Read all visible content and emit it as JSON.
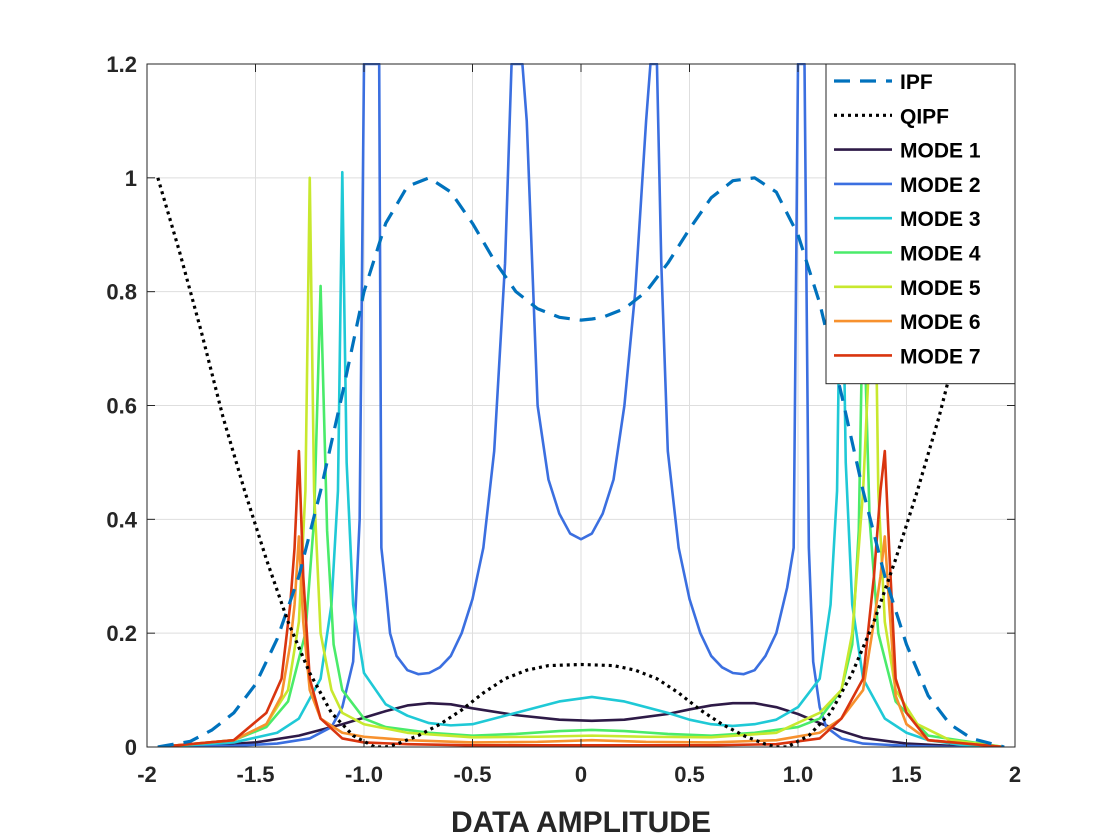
{
  "chart_data": {
    "type": "line",
    "title": "",
    "xlabel": "DATA  AMPLITUDE",
    "ylabel": "",
    "xlim": [
      -2,
      2
    ],
    "ylim": [
      0,
      1.2
    ],
    "grid": true,
    "legend_position": "top-right",
    "xticks": [
      {
        "value": -2,
        "label": "-2"
      },
      {
        "value": -1.5,
        "label": "-1.5"
      },
      {
        "value": -1,
        "label": "-1.0"
      },
      {
        "value": -0.5,
        "label": "-0.5"
      },
      {
        "value": 0,
        "label": "0"
      },
      {
        "value": 0.5,
        "label": "0.5"
      },
      {
        "value": 1,
        "label": "1.0"
      },
      {
        "value": 1.5,
        "label": "1.5"
      },
      {
        "value": 2,
        "label": "2"
      }
    ],
    "yticks": [
      {
        "value": 0,
        "label": "0"
      },
      {
        "value": 0.2,
        "label": "0.2"
      },
      {
        "value": 0.4,
        "label": "0.4"
      },
      {
        "value": 0.6,
        "label": "0.6"
      },
      {
        "value": 0.8,
        "label": "0.8"
      },
      {
        "value": 1,
        "label": "1"
      },
      {
        "value": 1.2,
        "label": "1.2"
      }
    ],
    "series": [
      {
        "name": "IPF",
        "color": "#0072BD",
        "style": "dashed",
        "x": [
          -1.95,
          -1.8,
          -1.7,
          -1.6,
          -1.5,
          -1.4,
          -1.3,
          -1.2,
          -1.1,
          -1.0,
          -0.9,
          -0.8,
          -0.7,
          -0.6,
          -0.5,
          -0.4,
          -0.3,
          -0.2,
          -0.1,
          0.0,
          0.05,
          0.1,
          0.2,
          0.3,
          0.4,
          0.5,
          0.6,
          0.7,
          0.8,
          0.9,
          1.0,
          1.1,
          1.2,
          1.3,
          1.4,
          1.5,
          1.6,
          1.7,
          1.8,
          1.95
        ],
        "y": [
          0.0,
          0.01,
          0.03,
          0.06,
          0.11,
          0.19,
          0.3,
          0.45,
          0.62,
          0.8,
          0.92,
          0.985,
          1.0,
          0.975,
          0.92,
          0.855,
          0.8,
          0.77,
          0.755,
          0.75,
          0.752,
          0.755,
          0.77,
          0.8,
          0.85,
          0.91,
          0.965,
          0.995,
          1.0,
          0.975,
          0.9,
          0.78,
          0.62,
          0.45,
          0.3,
          0.18,
          0.09,
          0.04,
          0.015,
          0.0
        ]
      },
      {
        "name": "QIPF",
        "color": "#000000",
        "style": "dotted",
        "x": [
          -1.95,
          -1.85,
          -1.75,
          -1.65,
          -1.55,
          -1.45,
          -1.35,
          -1.25,
          -1.15,
          -1.05,
          -0.95,
          -0.9,
          -0.85,
          -0.75,
          -0.65,
          -0.55,
          -0.45,
          -0.35,
          -0.25,
          -0.15,
          0.0,
          0.15,
          0.25,
          0.35,
          0.45,
          0.55,
          0.65,
          0.75,
          0.85,
          0.9,
          0.95,
          1.05,
          1.15,
          1.25,
          1.35,
          1.45,
          1.55,
          1.65,
          1.75,
          1.85,
          1.95
        ],
        "y": [
          1.0,
          0.87,
          0.73,
          0.58,
          0.45,
          0.33,
          0.22,
          0.13,
          0.06,
          0.02,
          0.0,
          0.0,
          0.005,
          0.02,
          0.04,
          0.065,
          0.095,
          0.12,
          0.135,
          0.143,
          0.145,
          0.143,
          0.135,
          0.12,
          0.095,
          0.065,
          0.04,
          0.02,
          0.005,
          0.0,
          0.0,
          0.02,
          0.06,
          0.13,
          0.22,
          0.33,
          0.45,
          0.58,
          0.73,
          0.87,
          1.0
        ]
      },
      {
        "name": "MODE 1",
        "color": "#2E1A47",
        "style": "solid",
        "x": [
          -1.95,
          -1.7,
          -1.5,
          -1.3,
          -1.1,
          -0.9,
          -0.8,
          -0.7,
          -0.6,
          -0.5,
          -0.3,
          -0.1,
          0.05,
          0.2,
          0.4,
          0.5,
          0.6,
          0.7,
          0.8,
          0.9,
          1.0,
          1.1,
          1.2,
          1.3,
          1.5,
          1.7,
          1.95
        ],
        "y": [
          0.0,
          0.003,
          0.008,
          0.02,
          0.04,
          0.063,
          0.073,
          0.077,
          0.075,
          0.068,
          0.056,
          0.048,
          0.046,
          0.048,
          0.058,
          0.066,
          0.073,
          0.077,
          0.077,
          0.07,
          0.058,
          0.042,
          0.028,
          0.016,
          0.006,
          0.002,
          0.0
        ]
      },
      {
        "name": "MODE 2",
        "color": "#3B6FE0",
        "style": "solid",
        "x": [
          -1.95,
          -1.6,
          -1.4,
          -1.25,
          -1.15,
          -1.1,
          -1.05,
          -1.02,
          -1.0,
          -0.98,
          -0.95,
          -0.93,
          -0.92,
          -0.9,
          -0.88,
          -0.85,
          -0.8,
          -0.75,
          -0.7,
          -0.65,
          -0.6,
          -0.55,
          -0.5,
          -0.45,
          -0.4,
          -0.35,
          -0.32,
          -0.3,
          -0.28,
          -0.27,
          -0.25,
          -0.22,
          -0.2,
          -0.15,
          -0.1,
          -0.05,
          0.0,
          0.05,
          0.1,
          0.15,
          0.2,
          0.25,
          0.3,
          0.32,
          0.33,
          0.35,
          0.37,
          0.4,
          0.45,
          0.5,
          0.55,
          0.6,
          0.65,
          0.7,
          0.75,
          0.8,
          0.85,
          0.9,
          0.95,
          0.98,
          1.0,
          1.02,
          1.03,
          1.05,
          1.07,
          1.1,
          1.13,
          1.2,
          1.3,
          1.5,
          1.7,
          1.95
        ],
        "y": [
          0.0,
          0.002,
          0.006,
          0.015,
          0.035,
          0.07,
          0.15,
          0.4,
          1.2,
          1.2,
          1.2,
          1.2,
          0.35,
          0.28,
          0.2,
          0.16,
          0.135,
          0.128,
          0.13,
          0.14,
          0.16,
          0.2,
          0.26,
          0.35,
          0.52,
          0.85,
          1.2,
          1.2,
          1.2,
          1.2,
          1.1,
          0.8,
          0.6,
          0.47,
          0.41,
          0.375,
          0.365,
          0.375,
          0.41,
          0.47,
          0.6,
          0.8,
          1.1,
          1.2,
          1.2,
          1.2,
          0.85,
          0.52,
          0.35,
          0.26,
          0.2,
          0.16,
          0.14,
          0.13,
          0.128,
          0.135,
          0.16,
          0.2,
          0.28,
          0.35,
          1.2,
          1.2,
          1.2,
          0.35,
          0.15,
          0.07,
          0.035,
          0.015,
          0.006,
          0.002,
          0.0,
          0.0
        ]
      },
      {
        "name": "MODE 3",
        "color": "#1FC9D6",
        "style": "solid",
        "x": [
          -1.95,
          -1.6,
          -1.4,
          -1.3,
          -1.2,
          -1.15,
          -1.12,
          -1.1,
          -1.08,
          -1.05,
          -1.0,
          -0.9,
          -0.8,
          -0.7,
          -0.6,
          -0.5,
          -0.3,
          -0.1,
          0.05,
          0.2,
          0.4,
          0.5,
          0.6,
          0.7,
          0.8,
          0.9,
          1.0,
          1.1,
          1.15,
          1.18,
          1.2,
          1.22,
          1.25,
          1.3,
          1.4,
          1.5,
          1.6,
          1.75,
          1.95
        ],
        "y": [
          0.0,
          0.008,
          0.025,
          0.05,
          0.12,
          0.25,
          0.45,
          1.01,
          0.5,
          0.25,
          0.13,
          0.075,
          0.055,
          0.042,
          0.038,
          0.04,
          0.06,
          0.08,
          0.088,
          0.08,
          0.06,
          0.048,
          0.04,
          0.037,
          0.04,
          0.048,
          0.07,
          0.12,
          0.25,
          0.45,
          1.01,
          0.5,
          0.25,
          0.12,
          0.05,
          0.025,
          0.012,
          0.004,
          0.0
        ]
      },
      {
        "name": "MODE 4",
        "color": "#4AEB6A",
        "style": "solid",
        "x": [
          -1.95,
          -1.6,
          -1.45,
          -1.35,
          -1.27,
          -1.23,
          -1.2,
          -1.17,
          -1.14,
          -1.1,
          -1.0,
          -0.9,
          -0.7,
          -0.5,
          -0.3,
          -0.1,
          0.05,
          0.2,
          0.4,
          0.6,
          0.8,
          1.0,
          1.1,
          1.2,
          1.25,
          1.28,
          1.3,
          1.33,
          1.37,
          1.45,
          1.6,
          1.95
        ],
        "y": [
          0.0,
          0.012,
          0.035,
          0.08,
          0.2,
          0.4,
          0.81,
          0.38,
          0.18,
          0.1,
          0.05,
          0.035,
          0.025,
          0.02,
          0.023,
          0.028,
          0.03,
          0.028,
          0.023,
          0.02,
          0.025,
          0.035,
          0.05,
          0.1,
          0.18,
          0.38,
          0.81,
          0.4,
          0.2,
          0.08,
          0.02,
          0.0
        ]
      },
      {
        "name": "MODE 5",
        "color": "#C8E82E",
        "style": "solid",
        "x": [
          -1.95,
          -1.6,
          -1.45,
          -1.35,
          -1.3,
          -1.27,
          -1.25,
          -1.23,
          -1.2,
          -1.15,
          -1.1,
          -1.0,
          -0.8,
          -0.5,
          -0.2,
          0.05,
          0.3,
          0.6,
          0.9,
          1.1,
          1.2,
          1.25,
          1.3,
          1.33,
          1.35,
          1.37,
          1.4,
          1.45,
          1.55,
          1.7,
          1.95
        ],
        "y": [
          0.0,
          0.012,
          0.04,
          0.1,
          0.22,
          0.45,
          1.0,
          0.45,
          0.2,
          0.1,
          0.06,
          0.04,
          0.025,
          0.017,
          0.018,
          0.02,
          0.018,
          0.017,
          0.025,
          0.06,
          0.1,
          0.2,
          0.45,
          0.7,
          1.0,
          0.45,
          0.22,
          0.1,
          0.04,
          0.012,
          0.0
        ]
      },
      {
        "name": "MODE 6",
        "color": "#F7912E",
        "style": "solid",
        "x": [
          -1.95,
          -1.6,
          -1.45,
          -1.38,
          -1.34,
          -1.32,
          -1.3,
          -1.28,
          -1.25,
          -1.2,
          -1.1,
          -1.0,
          -0.8,
          -0.5,
          -0.2,
          0.05,
          0.3,
          0.6,
          0.9,
          1.1,
          1.2,
          1.3,
          1.35,
          1.38,
          1.4,
          1.42,
          1.45,
          1.5,
          1.6,
          1.95
        ],
        "y": [
          0.0,
          0.012,
          0.04,
          0.09,
          0.18,
          0.25,
          0.37,
          0.22,
          0.1,
          0.05,
          0.025,
          0.018,
          0.012,
          0.008,
          0.009,
          0.012,
          0.009,
          0.008,
          0.012,
          0.025,
          0.05,
          0.1,
          0.22,
          0.3,
          0.37,
          0.25,
          0.09,
          0.04,
          0.012,
          0.0
        ]
      },
      {
        "name": "MODE 7",
        "color": "#D9350F",
        "style": "solid",
        "x": [
          -1.95,
          -1.6,
          -1.45,
          -1.38,
          -1.34,
          -1.32,
          -1.3,
          -1.28,
          -1.25,
          -1.2,
          -1.1,
          -1.0,
          -0.8,
          -0.5,
          -0.2,
          0.05,
          0.3,
          0.6,
          0.9,
          1.1,
          1.2,
          1.3,
          1.35,
          1.38,
          1.4,
          1.42,
          1.45,
          1.5,
          1.6,
          1.95
        ],
        "y": [
          0.0,
          0.012,
          0.06,
          0.12,
          0.25,
          0.35,
          0.52,
          0.3,
          0.12,
          0.05,
          0.015,
          0.008,
          0.005,
          0.003,
          0.003,
          0.003,
          0.003,
          0.003,
          0.005,
          0.015,
          0.05,
          0.12,
          0.3,
          0.45,
          0.52,
          0.35,
          0.12,
          0.06,
          0.012,
          0.0
        ]
      }
    ]
  }
}
